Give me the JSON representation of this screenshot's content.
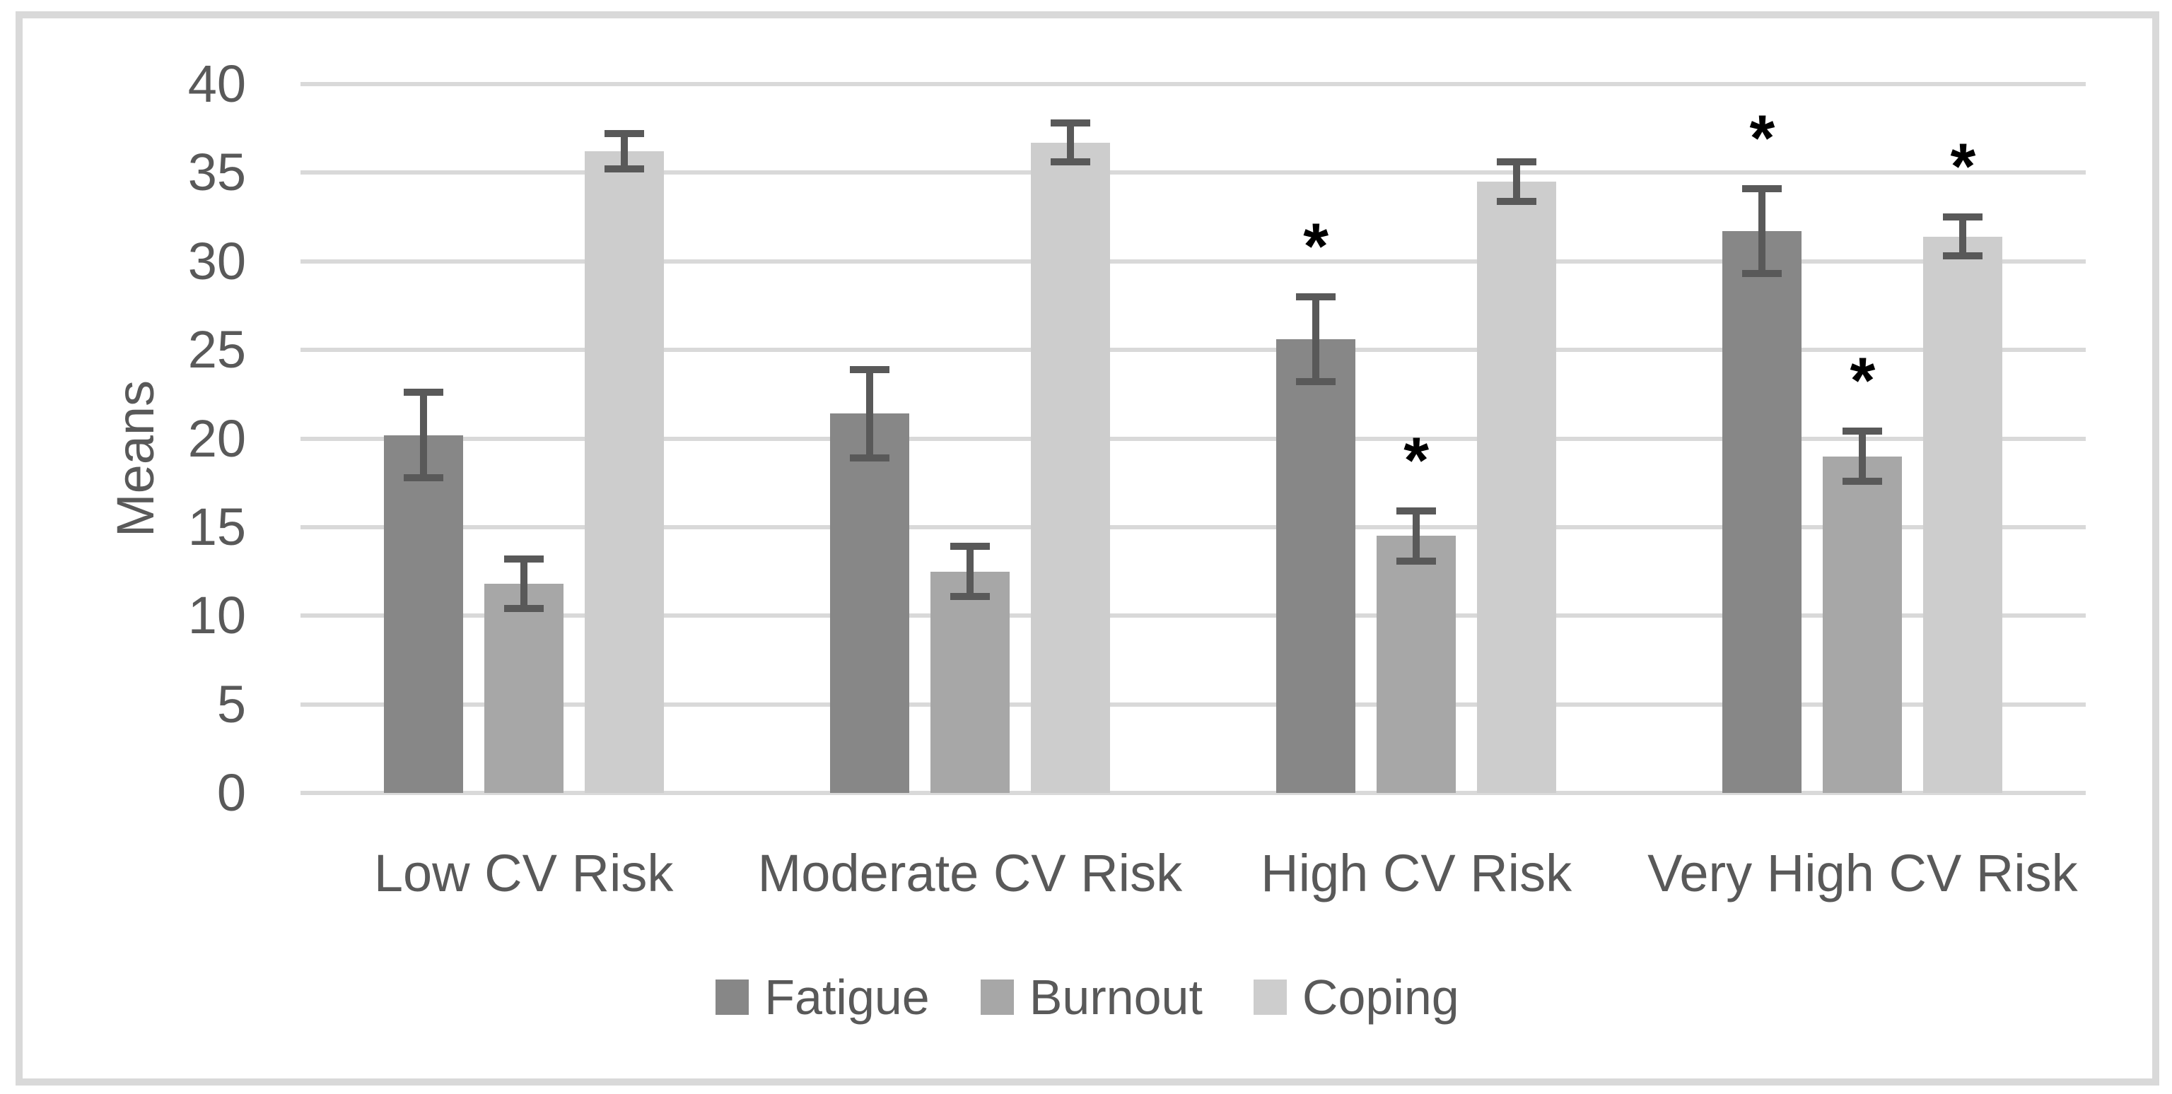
{
  "figure": {
    "background": "#ffffff",
    "border_color": "#d9d9d9"
  },
  "chart_data": {
    "type": "bar",
    "title": "",
    "xlabel": "",
    "ylabel": "Means",
    "categories": [
      "Low CV Risk",
      "Moderate CV Risk",
      "High CV Risk",
      "Very High CV Risk"
    ],
    "series": [
      {
        "name": "Fatigue",
        "color": "#878787",
        "values": [
          20.2,
          21.4,
          25.6,
          31.7
        ],
        "errors": [
          2.6,
          2.7,
          2.6,
          2.6
        ],
        "significant": [
          false,
          false,
          true,
          true
        ]
      },
      {
        "name": "Burnout",
        "color": "#a7a7a7",
        "values": [
          11.8,
          12.5,
          14.5,
          19.0
        ],
        "errors": [
          1.6,
          1.6,
          1.6,
          1.6
        ],
        "significant": [
          false,
          false,
          true,
          true
        ]
      },
      {
        "name": "Coping",
        "color": "#cdcdcd",
        "values": [
          36.2,
          36.7,
          34.5,
          31.4
        ],
        "errors": [
          1.2,
          1.3,
          1.3,
          1.3
        ],
        "significant": [
          false,
          false,
          false,
          true
        ]
      }
    ],
    "y_axis": {
      "min": 0,
      "max": 40,
      "step": 5,
      "tick_labels": [
        "0",
        "5",
        "10",
        "15",
        "20",
        "25",
        "30",
        "35",
        "40"
      ]
    },
    "gridlines": true,
    "gridline_color": "#d9d9d9",
    "error_bar_color": "#595959",
    "significance_marker": "*",
    "legend_position": "bottom",
    "ylim": [
      0,
      40
    ]
  }
}
